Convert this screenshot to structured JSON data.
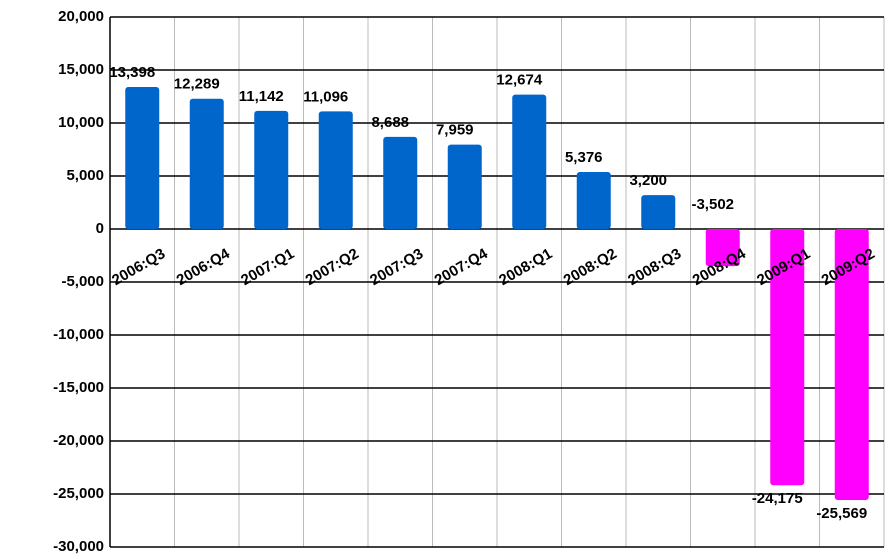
{
  "chart_data": {
    "type": "bar",
    "categories": [
      "2006:Q3",
      "2006:Q4",
      "2007:Q1",
      "2007:Q2",
      "2007:Q3",
      "2007:Q4",
      "2008:Q1",
      "2008:Q2",
      "2008:Q3",
      "2008:Q4",
      "2009:Q1",
      "2009:Q2"
    ],
    "values": [
      13398,
      12289,
      11142,
      11096,
      8688,
      7959,
      12674,
      5376,
      3200,
      -3502,
      -24175,
      -25569
    ],
    "value_labels": [
      "13,398",
      "12,289",
      "11,142",
      "11,096",
      "8,688",
      "7,959",
      "12,674",
      "5,376",
      "3,200",
      "-3,502",
      "-24,175",
      "-25,569"
    ],
    "colors": [
      "#0066cc",
      "#0066cc",
      "#0066cc",
      "#0066cc",
      "#0066cc",
      "#0066cc",
      "#0066cc",
      "#0066cc",
      "#0066cc",
      "#ff00ff",
      "#ff00ff",
      "#ff00ff"
    ],
    "ylim": [
      -30000,
      20000
    ],
    "yticks": [
      {
        "value": -30000,
        "label": "-30,000"
      },
      {
        "value": -25000,
        "label": "-25,000"
      },
      {
        "value": -20000,
        "label": "-20,000"
      },
      {
        "value": -15000,
        "label": "-15,000"
      },
      {
        "value": -10000,
        "label": "-10,000"
      },
      {
        "value": -5000,
        "label": "-5,000"
      },
      0,
      {
        "value": 5000,
        "label": "5,000"
      },
      {
        "value": 10000,
        "label": "10,000"
      },
      {
        "value": 15000,
        "label": "15,000"
      },
      {
        "value": 20000,
        "label": "20,000"
      }
    ],
    "grid": true
  }
}
